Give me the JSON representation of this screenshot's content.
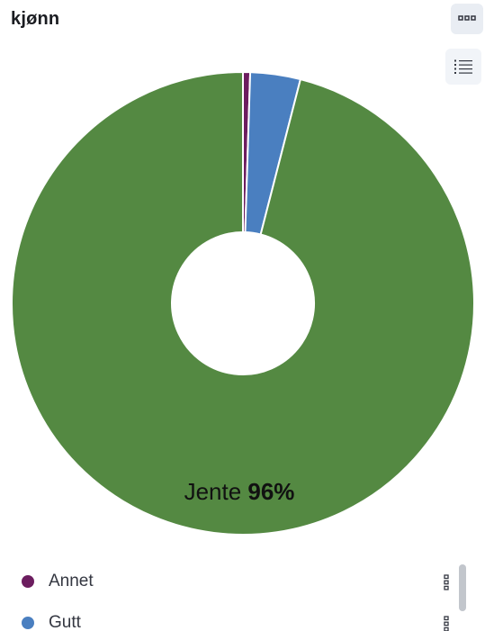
{
  "panel": {
    "title": "kjønn",
    "options_icon": "dots-grid-icon",
    "legend_toggle_icon": "list-icon"
  },
  "chart_data": {
    "type": "pie",
    "donut": true,
    "categories": [
      "Annet",
      "Gutt",
      "Jente"
    ],
    "values": [
      0.5,
      3.5,
      96
    ],
    "colors": [
      "#6c1d5f",
      "#4a7fc0",
      "#548942"
    ],
    "slice_labels": [
      {
        "category": "Jente",
        "text": "Jente",
        "value_text": "96%"
      }
    ],
    "legend": {
      "placement": "bottom",
      "visible_items": [
        {
          "label": "Annet",
          "color": "#6c1d5f"
        },
        {
          "label": "Gutt",
          "color": "#4a7fc0"
        }
      ]
    }
  }
}
